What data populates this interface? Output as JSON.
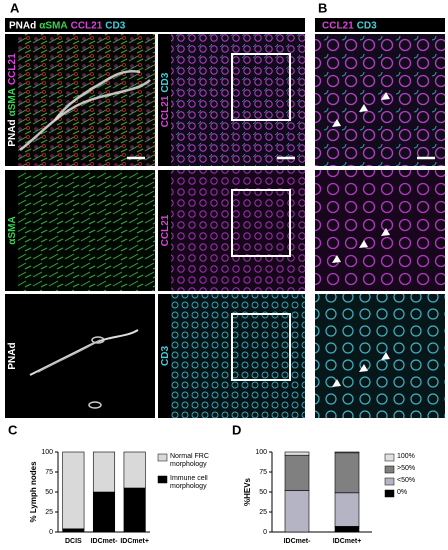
{
  "panel_labels": [
    "A",
    "B",
    "C",
    "D"
  ],
  "header_a": [
    {
      "text": "PNAd",
      "color": "#ffffff"
    },
    {
      "text": "αSMA",
      "color": "#39d353"
    },
    {
      "text": "CCL21",
      "color": "#e040e0"
    },
    {
      "text": "CD3",
      "color": "#40d0e0"
    }
  ],
  "header_b": [
    {
      "text": "CCL21",
      "color": "#e040e0"
    },
    {
      "text": "CD3",
      "color": "#40d0e0"
    }
  ],
  "image_labels": [
    [
      {
        "text": "PNAd",
        "color": "#ffffff"
      },
      {
        "text": "αSMA",
        "color": "#39d353"
      },
      {
        "text": "CCL21",
        "color": "#e040e0"
      }
    ],
    [
      {
        "text": "CCL21",
        "color": "#e040e0"
      },
      {
        "text": "CD3",
        "color": "#40d0e0"
      }
    ],
    [
      {
        "text": "αSMA",
        "color": "#39d353"
      }
    ],
    [
      {
        "text": "CCL21",
        "color": "#e040e0"
      }
    ],
    [
      {
        "text": "PNAd",
        "color": "#ffffff"
      }
    ],
    [
      {
        "text": "CD3",
        "color": "#40d0e0"
      }
    ]
  ],
  "chart_data": [
    {
      "type": "bar",
      "stacked": true,
      "ylabel": "% Lymph nodes",
      "categories": [
        "DCIS",
        "IDCmet-",
        "IDCmet+"
      ],
      "ylim": [
        0,
        100
      ],
      "yticks": [
        0,
        25,
        50,
        75,
        100
      ],
      "series": [
        {
          "name": "Immune cell morphology",
          "color": "#000000",
          "values": [
            4,
            50,
            55
          ]
        },
        {
          "name": "Normal FRC morphology",
          "color": "#d9d9d9",
          "values": [
            96,
            50,
            45
          ]
        }
      ]
    },
    {
      "type": "bar",
      "stacked": true,
      "ylabel": "%HEVs",
      "categories": [
        "IDCmet-",
        "IDCmet+"
      ],
      "ylim": [
        0,
        100
      ],
      "yticks": [
        0,
        25,
        50,
        75,
        100
      ],
      "series": [
        {
          "name": "0%",
          "color": "#000000",
          "values": [
            0,
            7
          ]
        },
        {
          "name": "<50%",
          "color": "#b4b4c4",
          "values": [
            52,
            42
          ]
        },
        {
          "name": ">50%",
          "color": "#808080",
          "values": [
            44,
            50
          ]
        },
        {
          "name": "100%",
          "color": "#e0e0e0",
          "values": [
            4,
            1
          ]
        }
      ]
    }
  ]
}
